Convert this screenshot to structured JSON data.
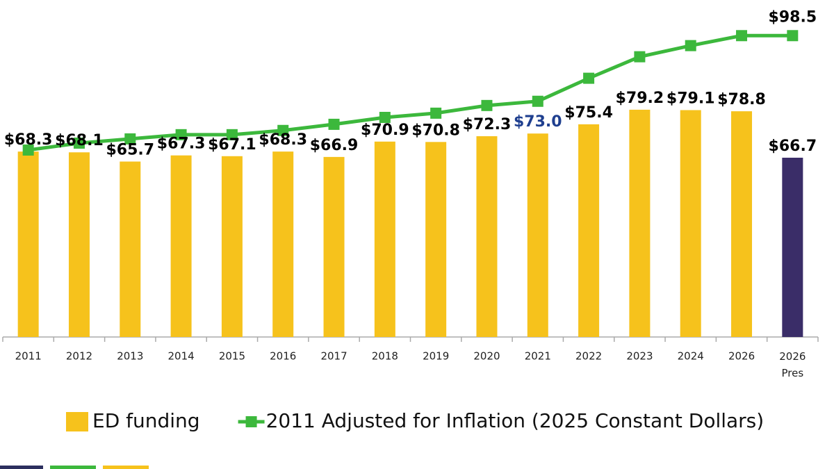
{
  "chart_data": {
    "type": "bar-line",
    "categories": [
      "2011",
      "2012",
      "2013",
      "2014",
      "2015",
      "2016",
      "2017",
      "2018",
      "2019",
      "2020",
      "2021",
      "2022",
      "2023",
      "2024",
      "2026",
      "2026 Pres"
    ],
    "ylim": [
      20,
      100
    ],
    "series": [
      {
        "name": "ED funding",
        "type": "bar",
        "color": "#f6c21c",
        "colors": [
          "#f6c21c",
          "#f6c21c",
          "#f6c21c",
          "#f6c21c",
          "#f6c21c",
          "#f6c21c",
          "#f6c21c",
          "#f6c21c",
          "#f6c21c",
          "#f6c21c",
          "#f6c21c",
          "#f6c21c",
          "#f6c21c",
          "#f6c21c",
          "#f6c21c",
          "#3a2d68"
        ],
        "values": [
          68.3,
          68.1,
          65.7,
          67.3,
          67.1,
          68.3,
          66.9,
          70.9,
          70.8,
          72.3,
          73.0,
          75.4,
          79.2,
          79.1,
          78.8,
          66.7
        ],
        "value_labels": [
          "$68.3",
          "$68.1",
          "$65.7",
          "$67.3",
          "$67.1",
          "$68.3",
          "$66.9",
          "$70.9",
          "$70.8",
          "$72.3",
          "$73.0",
          "$75.4",
          "$79.2",
          "$79.1",
          "$78.8",
          "$66.7"
        ],
        "value_label_colors": [
          "#000000",
          "#000000",
          "#000000",
          "#000000",
          "#000000",
          "#000000",
          "#000000",
          "#000000",
          "#000000",
          "#000000",
          "#1f3f8f",
          "#000000",
          "#000000",
          "#000000",
          "#000000",
          "#000000"
        ]
      },
      {
        "name": "2011 Adjusted for Inflation (2025 Constant Dollars)",
        "type": "line",
        "color": "#3cb83c",
        "values": [
          68.7,
          70.5,
          71.6,
          72.7,
          72.7,
          73.8,
          75.4,
          77.2,
          78.3,
          80.3,
          81.4,
          87.4,
          93.0,
          95.9,
          98.5,
          98.5
        ],
        "value_labels": [
          null,
          null,
          null,
          null,
          null,
          null,
          null,
          null,
          null,
          null,
          null,
          null,
          null,
          null,
          null,
          "$98.5"
        ]
      }
    ]
  }
}
